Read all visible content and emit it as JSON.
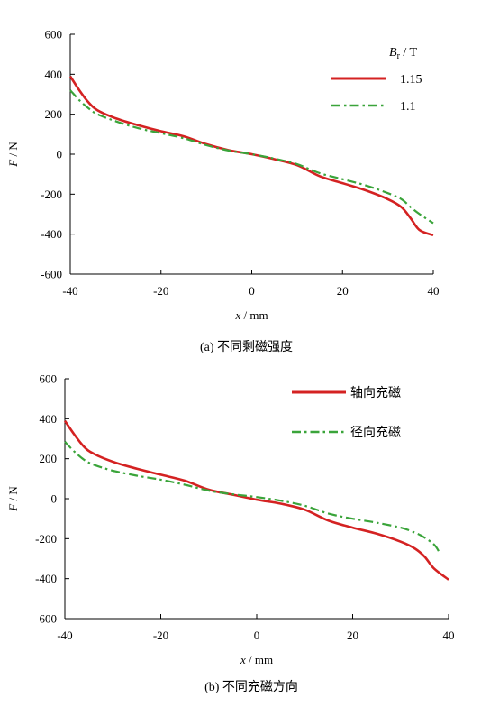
{
  "chart_data": [
    {
      "type": "line",
      "caption": "(a)  不同剩磁强度",
      "xlabel_var": "x",
      "xlabel_unit": " / mm",
      "ylabel_var": "F",
      "ylabel_unit": " /  N",
      "xlim": [
        -40,
        40
      ],
      "ylim": [
        -600,
        600
      ],
      "xticks": [
        "-40",
        "-20",
        "0",
        "20",
        "40"
      ],
      "yticks": [
        "600",
        "400",
        "200",
        "0",
        "-200",
        "-400",
        "-600"
      ],
      "legend_title": {
        "var": "B",
        "sub": "r",
        "unit": " / T"
      },
      "legend_position": "top-right",
      "series": [
        {
          "name": "1.15",
          "color": "#d42222",
          "style": "solid",
          "x": [
            -40,
            -38,
            -36,
            -34,
            -30,
            -25,
            -20,
            -15,
            -10,
            -5,
            0,
            5,
            10,
            15,
            20,
            25,
            30,
            33,
            35,
            37,
            40
          ],
          "y": [
            390,
            320,
            260,
            220,
            180,
            145,
            115,
            90,
            50,
            20,
            0,
            -25,
            -55,
            -110,
            -145,
            -180,
            -225,
            -265,
            -320,
            -380,
            -405
          ]
        },
        {
          "name": "1.1",
          "color": "#3aa43a",
          "style": "dashdot",
          "x": [
            -40,
            -38,
            -36,
            -34,
            -30,
            -25,
            -20,
            -15,
            -10,
            -5,
            0,
            5,
            10,
            15,
            20,
            25,
            30,
            33,
            35,
            37,
            40
          ],
          "y": [
            320,
            270,
            230,
            200,
            165,
            130,
            105,
            80,
            45,
            18,
            0,
            -22,
            -50,
            -95,
            -125,
            -155,
            -195,
            -225,
            -265,
            -300,
            -345
          ]
        }
      ]
    },
    {
      "type": "line",
      "caption": "(b)  不同充磁方向",
      "xlabel_var": "x",
      "xlabel_unit": " / mm",
      "ylabel_var": "F",
      "ylabel_unit": " /  N",
      "xlim": [
        -40,
        40
      ],
      "ylim": [
        -600,
        600
      ],
      "xticks": [
        "-40",
        "-20",
        "0",
        "20",
        "40"
      ],
      "yticks": [
        "600",
        "400",
        "200",
        "0",
        "-200",
        "-400",
        "-600"
      ],
      "legend_position": "top-right",
      "series": [
        {
          "name": "轴向充磁",
          "color": "#d42222",
          "style": "solid",
          "x": [
            -40,
            -38,
            -36,
            -34,
            -30,
            -25,
            -20,
            -15,
            -10,
            -5,
            0,
            5,
            10,
            15,
            20,
            25,
            30,
            33,
            35,
            37,
            40
          ],
          "y": [
            390,
            320,
            260,
            225,
            185,
            150,
            120,
            90,
            45,
            20,
            -5,
            -25,
            -55,
            -110,
            -145,
            -175,
            -215,
            -250,
            -290,
            -350,
            -405
          ]
        },
        {
          "name": "径向充磁",
          "color": "#3aa43a",
          "style": "dashdot",
          "x": [
            -40,
            -38,
            -36,
            -34,
            -30,
            -25,
            -20,
            -15,
            -10,
            -5,
            0,
            5,
            10,
            15,
            20,
            25,
            30,
            33,
            35,
            37,
            38
          ],
          "y": [
            285,
            235,
            195,
            170,
            140,
            115,
            95,
            70,
            40,
            22,
            8,
            -10,
            -35,
            -75,
            -100,
            -120,
            -145,
            -170,
            -195,
            -230,
            -265
          ]
        }
      ]
    }
  ]
}
